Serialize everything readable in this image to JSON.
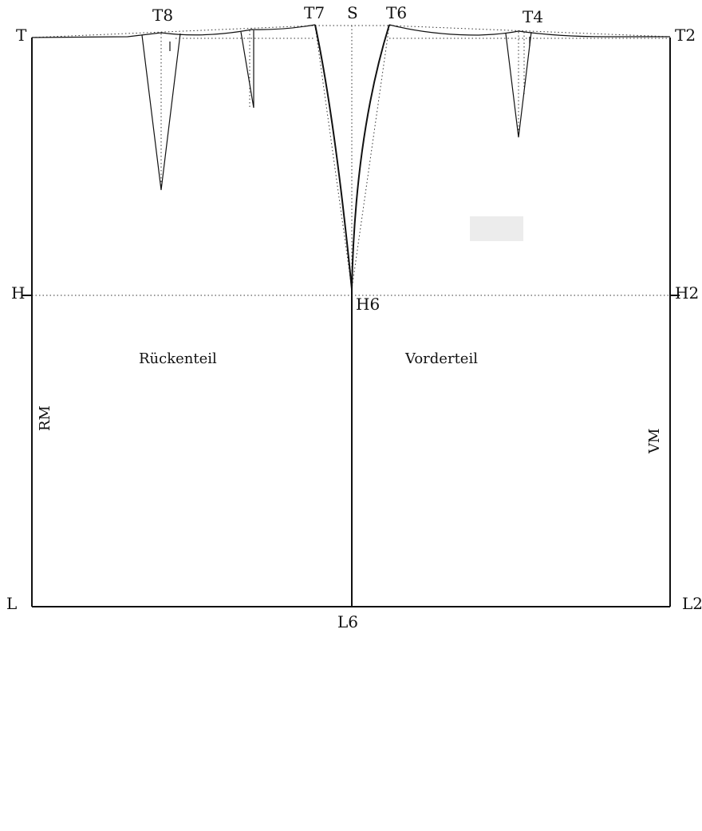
{
  "labels": {
    "T": "T",
    "T2": "T2",
    "T4": "T4",
    "T6": "T6",
    "T7": "T7",
    "T8": "T8",
    "S": "S",
    "H": "H",
    "H2": "H2",
    "H6": "H6",
    "L": "L",
    "L2": "L2",
    "L6": "L6",
    "back_piece": "Rückenteil",
    "front_piece": "Vorderteil",
    "back_center": "RM",
    "front_center": "VM"
  },
  "colors": {
    "line": "#111111",
    "guide": "#333333",
    "patch": "#ececec"
  }
}
